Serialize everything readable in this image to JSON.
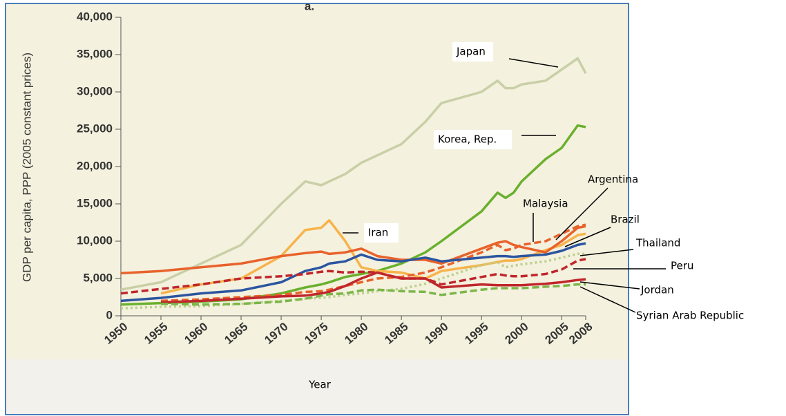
{
  "chart_data": {
    "type": "line",
    "title": "a.",
    "x_label": "Year",
    "y_label": "GDP per capita, PPP (2005 constant prices)",
    "x": [
      1950,
      1955,
      1960,
      1965,
      1970,
      1973,
      1975,
      1976,
      1978,
      1980,
      1982,
      1985,
      1988,
      1990,
      1995,
      1997,
      1998,
      1999,
      2000,
      2003,
      2005,
      2007,
      2008
    ],
    "xlim": [
      1950,
      2008
    ],
    "xticks": [
      1950,
      1955,
      1960,
      1965,
      1970,
      1975,
      1980,
      1985,
      1990,
      1995,
      2000,
      2005,
      2008
    ],
    "ylim": [
      0,
      40000
    ],
    "yticks": [
      0,
      {
        "value": 5000,
        "label": "5,000"
      },
      {
        "value": 10000,
        "label": "10,000"
      },
      {
        "value": 15000,
        "label": "15,000"
      },
      {
        "value": 20000,
        "label": "20,000"
      },
      {
        "value": 25000,
        "label": "25,000"
      },
      {
        "value": 30000,
        "label": "30,000"
      },
      {
        "value": 35000,
        "label": "35,000"
      },
      {
        "value": 40000,
        "label": "40,000"
      }
    ],
    "series": [
      {
        "name": "Japan",
        "color": "#c9cfa6",
        "dash": "solid",
        "values": [
          3500,
          4500,
          7000,
          9500,
          15000,
          18000,
          17500,
          18000,
          19000,
          20500,
          21500,
          23000,
          26000,
          28500,
          30000,
          31500,
          30500,
          30500,
          31000,
          31500,
          33000,
          34500,
          32500
        ]
      },
      {
        "name": "Korea, Rep.",
        "color": "#6ab02e",
        "dash": "solid",
        "values": [
          1500,
          1700,
          1900,
          2200,
          3000,
          3800,
          4200,
          4500,
          5200,
          5600,
          6000,
          7000,
          8500,
          10000,
          14000,
          16500,
          15800,
          16500,
          18000,
          21000,
          22500,
          25500,
          25300
        ]
      },
      {
        "name": "Iran",
        "color": "#f7b34a",
        "dash": "solid",
        "values": [
          null,
          3000,
          4200,
          5000,
          8000,
          11500,
          11800,
          12800,
          10000,
          6500,
          6000,
          5800,
          5000,
          6000,
          6800,
          7200,
          7400,
          7400,
          7600,
          8800,
          9500,
          10800,
          11000
        ]
      },
      {
        "name": "Argentina",
        "color": "#e8622b",
        "dash": "solid",
        "values": [
          5700,
          6000,
          6500,
          7000,
          8000,
          8400,
          8600,
          8300,
          8500,
          9000,
          8000,
          7500,
          7500,
          7000,
          9000,
          9800,
          10000,
          9500,
          9200,
          8500,
          10000,
          11800,
          12000
        ]
      },
      {
        "name": "Malaysia",
        "color": "#e8622b",
        "dash": "dashed",
        "values": [
          null,
          2000,
          2200,
          2500,
          2800,
          3200,
          3300,
          3500,
          4000,
          4500,
          5000,
          5200,
          5800,
          6500,
          8500,
          9500,
          8800,
          9000,
          9500,
          10000,
          11000,
          12000,
          12200
        ]
      },
      {
        "name": "Brazil",
        "color": "#2c55a0",
        "dash": "solid",
        "values": [
          2000,
          2400,
          3000,
          3400,
          4500,
          6000,
          6500,
          7000,
          7300,
          8200,
          7500,
          7300,
          7800,
          7300,
          7800,
          8000,
          8000,
          7900,
          8000,
          8200,
          8700,
          9500,
          9700
        ]
      },
      {
        "name": "Thailand",
        "color": "#bccf8f",
        "dash": "dotted",
        "values": [
          1000,
          1200,
          1300,
          1600,
          2000,
          2300,
          2400,
          2500,
          2800,
          3000,
          3300,
          3600,
          4300,
          5000,
          6800,
          7200,
          6500,
          6700,
          6900,
          7300,
          7800,
          8300,
          8300
        ]
      },
      {
        "name": "Peru",
        "color": "#c0262c",
        "dash": "dashed",
        "values": [
          3000,
          3600,
          4200,
          5000,
          5300,
          5600,
          5900,
          6000,
          5800,
          5900,
          5800,
          5000,
          5000,
          4200,
          5200,
          5600,
          5400,
          5300,
          5300,
          5600,
          6200,
          7400,
          7600
        ]
      },
      {
        "name": "Jordan",
        "color": "#c0262c",
        "dash": "solid",
        "values": [
          null,
          1800,
          2000,
          2300,
          2600,
          2700,
          3000,
          3200,
          4000,
          5000,
          5800,
          5000,
          5000,
          3800,
          4200,
          4100,
          4100,
          4100,
          4100,
          4300,
          4500,
          4800,
          4900
        ]
      },
      {
        "name": "Syrian Arab Republic",
        "color": "#7ab648",
        "dash": "dashed",
        "values": [
          null,
          1600,
          1500,
          1600,
          1900,
          2300,
          2700,
          2900,
          3000,
          3400,
          3500,
          3300,
          3200,
          2800,
          3500,
          3700,
          3700,
          3700,
          3700,
          3900,
          4000,
          4200,
          4200
        ]
      }
    ]
  }
}
